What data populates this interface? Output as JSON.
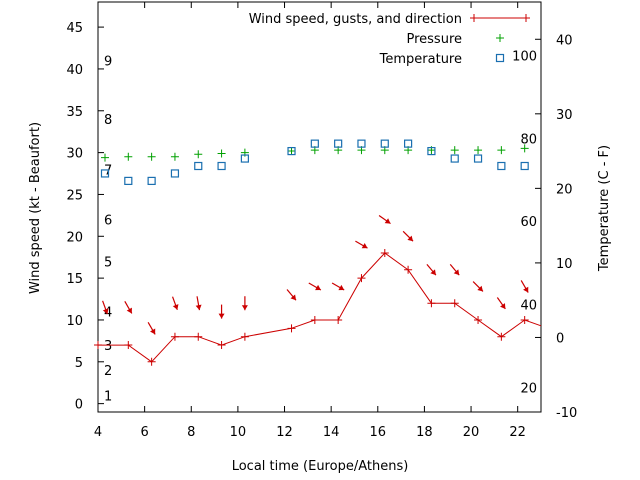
{
  "chart_data": {
    "type": "line",
    "xlabel": "Local time (Europe/Athens)",
    "ylabel_left": "Wind speed (kt - Beaufort)",
    "ylabel_right": "Temperature (C - F)",
    "xlim": [
      4,
      23
    ],
    "ylim_left": [
      -1,
      48
    ],
    "ylim_right": [
      -10,
      45
    ],
    "x_ticks": [
      4,
      6,
      8,
      10,
      12,
      14,
      16,
      18,
      20,
      22
    ],
    "y_left_ticks": [
      0,
      5,
      10,
      15,
      20,
      25,
      30,
      35,
      40,
      45
    ],
    "y_right_ticks": [
      -10,
      0,
      10,
      20,
      30,
      40
    ],
    "beaufort_labels": [
      {
        "label": "1",
        "kt": 1
      },
      {
        "label": "2",
        "kt": 4
      },
      {
        "label": "3",
        "kt": 7
      },
      {
        "label": "4",
        "kt": 11
      },
      {
        "label": "5",
        "kt": 17
      },
      {
        "label": "6",
        "kt": 22
      },
      {
        "label": "7",
        "kt": 28
      },
      {
        "label": "8",
        "kt": 34
      },
      {
        "label": "9",
        "kt": 41
      }
    ],
    "fahrenheit_labels": [
      {
        "label": "20",
        "celsius": -6.7
      },
      {
        "label": "40",
        "celsius": 4.4
      },
      {
        "label": "60",
        "celsius": 15.6
      },
      {
        "label": "80",
        "celsius": 26.7
      },
      {
        "label": "100",
        "celsius": 37.8
      }
    ],
    "grid": false,
    "legend_position": "top-right",
    "series": [
      {
        "name": "Wind speed, gusts, and direction",
        "axis": "left",
        "color": "#cc0000",
        "style": "line-with-plus",
        "x": [
          4,
          5.3,
          6.3,
          7.3,
          8.3,
          9.3,
          10.3,
          12.3,
          13.3,
          14.3,
          15.3,
          16.3,
          17.3,
          18.3,
          19.3,
          20.3,
          21.3,
          22.3,
          23
        ],
        "y": [
          7,
          7,
          5,
          8,
          8,
          7,
          8,
          9,
          10,
          10,
          15,
          18,
          16,
          12,
          12,
          10,
          8,
          10,
          9.3
        ]
      },
      {
        "name": "Pressure",
        "axis": "left",
        "color": "#00a000",
        "style": "plus-markers",
        "x": [
          4.3,
          5.3,
          6.3,
          7.3,
          8.3,
          9.3,
          10.3,
          12.3,
          13.3,
          14.3,
          15.3,
          16.3,
          17.3,
          18.3,
          19.3,
          20.3,
          21.3,
          22.3
        ],
        "y": [
          29.4,
          29.5,
          29.5,
          29.5,
          29.8,
          29.9,
          30.0,
          30.2,
          30.3,
          30.3,
          30.3,
          30.3,
          30.3,
          30.3,
          30.3,
          30.3,
          30.3,
          30.5
        ]
      },
      {
        "name": "Temperature",
        "axis": "right",
        "color": "#1a6fb0",
        "style": "square-markers",
        "x": [
          4.3,
          5.3,
          6.3,
          7.3,
          8.3,
          9.3,
          10.3,
          12.3,
          13.3,
          14.3,
          15.3,
          16.3,
          17.3,
          18.3,
          19.3,
          20.3,
          21.3,
          22.3
        ],
        "y": [
          22,
          21,
          21,
          22,
          23,
          23,
          24,
          25,
          26,
          26,
          26,
          26,
          26,
          25,
          24,
          24,
          23,
          23
        ]
      }
    ],
    "wind_arrows": {
      "color": "#cc0000",
      "x": [
        4.3,
        5.3,
        6.3,
        7.3,
        8.3,
        9.3,
        10.3,
        12.3,
        13.3,
        14.3,
        15.3,
        16.3,
        17.3,
        18.3,
        19.3,
        20.3,
        21.3,
        22.3
      ],
      "y": [
        11.5,
        11.5,
        9.0,
        12.0,
        12.0,
        11.0,
        12.0,
        13.0,
        14.0,
        14.0,
        19.0,
        22.0,
        20.0,
        16.0,
        16.0,
        14.0,
        12.0,
        14.0
      ],
      "direction_deg": [
        340,
        330,
        330,
        340,
        350,
        0,
        0,
        320,
        300,
        300,
        300,
        305,
        315,
        320,
        320,
        315,
        325,
        330
      ]
    }
  }
}
